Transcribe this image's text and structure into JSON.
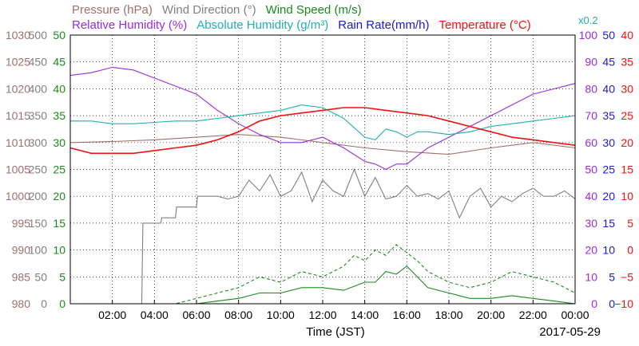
{
  "header": {
    "line1": [
      {
        "text": "Pressure (hPa)",
        "color": "#a0706a"
      },
      {
        "text": "Wind Direction (°)",
        "color": "#808080"
      },
      {
        "text": "Wind Speed (m/s)",
        "color": "#1a8a1a"
      }
    ],
    "line2": [
      {
        "text": "Relative Humidity (%)",
        "color": "#9a2be0"
      },
      {
        "text": "Absolute Humidity (g/m³)",
        "color": "#20b0b0"
      },
      {
        "text": "Rain Rate(mm/h)",
        "color": "#1a1ad0"
      },
      {
        "text": "Temperature (°C)",
        "color": "#ee1111"
      }
    ],
    "scale_note": {
      "text": "x0.2",
      "color": "#20b0b0"
    }
  },
  "xlabel": "Time (JST)",
  "date_label": "2017-05-29",
  "chart_data": {
    "type": "line",
    "x_unit": "hour",
    "xlim": [
      0,
      24
    ],
    "x_ticks": [
      {
        "x": 2,
        "label": "02:00"
      },
      {
        "x": 4,
        "label": "04:00"
      },
      {
        "x": 6,
        "label": "06:00"
      },
      {
        "x": 8,
        "label": "08:00"
      },
      {
        "x": 10,
        "label": "10:00"
      },
      {
        "x": 12,
        "label": "12:00"
      },
      {
        "x": 14,
        "label": "14:00"
      },
      {
        "x": 16,
        "label": "16:00"
      },
      {
        "x": 18,
        "label": "18:00"
      },
      {
        "x": 20,
        "label": "20:00"
      },
      {
        "x": 22,
        "label": "22:00"
      },
      {
        "x": 24,
        "label": "00:00"
      }
    ],
    "grid": true,
    "left_axes": [
      {
        "name": "pressure",
        "color": "#a0706a",
        "ylim": [
          980,
          1030
        ],
        "ticks": [
          "980",
          "985",
          "990",
          "995",
          "1000",
          "1005",
          "1010",
          "1015",
          "1020",
          "1025",
          "1030"
        ]
      },
      {
        "name": "wind_direction",
        "color": "#808080",
        "ylim": [
          0,
          500
        ],
        "ticks": [
          "0",
          "50",
          "100",
          "150",
          "200",
          "250",
          "300",
          "350",
          "400",
          "450",
          "500"
        ]
      },
      {
        "name": "wind_speed",
        "color": "#1a8a1a",
        "ylim": [
          0,
          50
        ],
        "ticks": [
          "0",
          "5",
          "10",
          "15",
          "20",
          "25",
          "30",
          "35",
          "40",
          "45",
          "50"
        ]
      }
    ],
    "right_axes": [
      {
        "name": "relative_humidity",
        "color": "#9a2be0",
        "ylim": [
          0,
          100
        ],
        "ticks": [
          "0",
          "10",
          "20",
          "30",
          "40",
          "50",
          "60",
          "70",
          "80",
          "90",
          "100"
        ]
      },
      {
        "name": "rain_rate",
        "color": "#1a1ad0",
        "ylim": [
          0,
          50
        ],
        "ticks": [
          "0",
          "5",
          "10",
          "15",
          "20",
          "25",
          "30",
          "35",
          "40",
          "45",
          "50"
        ]
      },
      {
        "name": "temperature",
        "color": "#ee1111",
        "ylim": [
          -10,
          40
        ],
        "ticks": [
          "−10",
          "−5",
          "0",
          "5",
          "10",
          "15",
          "20",
          "25",
          "30",
          "35",
          "40"
        ]
      }
    ],
    "series": [
      {
        "axis": "pressure",
        "color": "#a0706a",
        "style": "solid",
        "x": [
          0,
          2,
          4,
          6,
          8,
          10,
          12,
          14,
          16,
          18,
          20,
          22,
          24
        ],
        "y": [
          1010,
          1010.2,
          1010.5,
          1011,
          1011.5,
          1011,
          1010,
          1009,
          1008.3,
          1007.8,
          1009,
          1010,
          1009
        ]
      },
      {
        "axis": "wind_direction",
        "color": "#808080",
        "style": "solid",
        "x": [
          0,
          3.4,
          3.45,
          4.3,
          4.35,
          5.0,
          5.05,
          6.0,
          6.05,
          7.0,
          7.5,
          8.0,
          8.5,
          9.0,
          9.5,
          10.0,
          10.5,
          11.0,
          11.5,
          12.0,
          12.5,
          13.0,
          13.5,
          14.0,
          14.5,
          15.0,
          15.5,
          16.0,
          16.5,
          17.0,
          17.5,
          18.0,
          18.5,
          19.0,
          19.5,
          20.0,
          20.5,
          21.0,
          21.5,
          22.0,
          22.5,
          23.0,
          23.5,
          24.0
        ],
        "y": [
          0,
          0,
          150,
          150,
          160,
          160,
          180,
          180,
          200,
          200,
          195,
          200,
          230,
          210,
          240,
          200,
          210,
          245,
          190,
          230,
          210,
          200,
          250,
          200,
          235,
          195,
          200,
          220,
          200,
          205,
          195,
          210,
          160,
          200,
          215,
          180,
          200,
          190,
          205,
          215,
          200,
          200,
          210,
          195
        ]
      },
      {
        "axis": "wind_speed",
        "color": "#1a8a1a",
        "style": "solid",
        "x": [
          0,
          6,
          7,
          8,
          9,
          10,
          11,
          12,
          13,
          14,
          14.5,
          15,
          15.5,
          16,
          16.5,
          17,
          18,
          19,
          20,
          21,
          22,
          23,
          24
        ],
        "y": [
          0,
          0,
          0.5,
          1,
          2,
          2,
          3,
          3,
          2.5,
          4,
          4,
          6,
          5.5,
          7,
          5,
          3,
          2,
          1,
          1,
          1.5,
          1,
          0.5,
          0
        ]
      },
      {
        "axis": "wind_speed",
        "color": "#1a8a1a",
        "style": "dashed",
        "x": [
          0,
          5,
          6,
          7,
          8,
          9,
          10,
          11,
          12,
          13,
          13.5,
          14,
          14.5,
          15,
          15.5,
          16,
          16.5,
          17,
          18,
          19,
          20,
          21,
          22,
          23,
          24
        ],
        "y": [
          0,
          0,
          1,
          2,
          3,
          5,
          4,
          6,
          5,
          7,
          9,
          8,
          10,
          9,
          11,
          9.5,
          8,
          6,
          4,
          3,
          4,
          6,
          5,
          4,
          2
        ]
      },
      {
        "axis": "relative_humidity",
        "color": "#9a2be0",
        "style": "solid",
        "x": [
          0,
          1,
          2,
          3,
          4,
          5,
          6,
          7,
          8,
          9,
          10,
          11,
          12,
          13,
          14,
          14.5,
          15,
          15.5,
          16,
          16.5,
          17,
          18,
          19,
          20,
          21,
          22,
          23,
          24
        ],
        "y": [
          85,
          86,
          88,
          87,
          84,
          81,
          78,
          72,
          67,
          63,
          60,
          60,
          62,
          58,
          53,
          52,
          50,
          52,
          52,
          55,
          58,
          62,
          66,
          70,
          74,
          78,
          80,
          82
        ]
      },
      {
        "axis": "relative_humidity",
        "color": "#20b0b0",
        "style": "solid",
        "note": "absolute humidity g/m3 drawn x0.2 on RH scale",
        "x": [
          0,
          1,
          2,
          3,
          4,
          5,
          6,
          7,
          8,
          9,
          10,
          11,
          12,
          13,
          14,
          14.5,
          15,
          15.5,
          16,
          16.5,
          17,
          18,
          19,
          20,
          21,
          22,
          23,
          24
        ],
        "y": [
          68,
          68,
          67,
          67,
          67.5,
          68,
          68,
          69,
          70,
          71,
          72,
          74,
          73,
          69,
          62,
          61,
          65,
          64,
          62,
          64,
          64,
          63,
          64,
          66,
          67,
          68,
          69,
          70
        ]
      },
      {
        "axis": "rain_rate",
        "color": "#1a1ad0",
        "style": "solid",
        "x": [
          0,
          24
        ],
        "y": [
          0,
          0
        ]
      },
      {
        "axis": "temperature",
        "color": "#ee1111",
        "style": "solid",
        "x": [
          0,
          1,
          2,
          3,
          4,
          5,
          6,
          7,
          8,
          9,
          10,
          11,
          12,
          13,
          14,
          15,
          16,
          17,
          18,
          19,
          20,
          21,
          22,
          23,
          24
        ],
        "y": [
          19,
          18,
          18,
          18,
          18.5,
          19,
          19.5,
          20.5,
          22,
          24,
          25,
          25.5,
          26,
          26.5,
          26.5,
          26,
          25.5,
          25,
          24,
          23,
          22,
          21,
          20.5,
          20,
          19.5
        ]
      }
    ]
  }
}
